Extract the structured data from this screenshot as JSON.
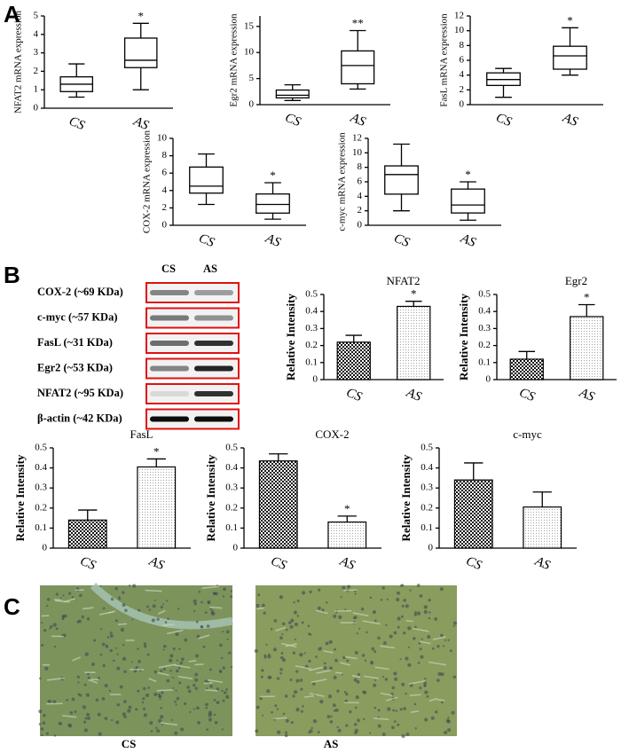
{
  "panels": [
    "A",
    "B",
    "C"
  ],
  "blot": {
    "columns": [
      "CS",
      "AS"
    ],
    "rows": [
      "COX-2 (~69 KDa)",
      "c-myc (~57 KDa)",
      "FasL (~31 KDa)",
      "Egr2 (~53 KDa)",
      "NFAT2 (~95 KDa)",
      "β-actin (~42 KDa)"
    ]
  },
  "histology": {
    "captions": [
      "CS",
      "AS"
    ]
  },
  "chart_data": [
    {
      "type": "box",
      "ylabel": "NFAT2 mRNA expression",
      "categories": [
        "CS",
        "AS"
      ],
      "min": [
        0.6,
        1.0
      ],
      "q1": [
        0.9,
        2.2
      ],
      "median": [
        1.3,
        2.6
      ],
      "q3": [
        1.7,
        3.8
      ],
      "max": [
        2.4,
        4.6
      ],
      "annotations": [
        null,
        "*"
      ],
      "ylim": [
        0,
        5
      ],
      "yticks": [
        0,
        1,
        2,
        3,
        4,
        5
      ]
    },
    {
      "type": "box",
      "ylabel": "Egr2 mRNA expression",
      "categories": [
        "CS",
        "AS"
      ],
      "min": [
        0.8,
        3.0
      ],
      "q1": [
        1.3,
        4.0
      ],
      "median": [
        1.8,
        7.5
      ],
      "q3": [
        2.8,
        10.3
      ],
      "max": [
        3.8,
        14.2
      ],
      "annotations": [
        null,
        "**"
      ],
      "ylim": [
        0,
        17
      ],
      "yticks": [
        0,
        5,
        10,
        15
      ]
    },
    {
      "type": "box",
      "ylabel": "FasL mRNA expression",
      "categories": [
        "CS",
        "AS"
      ],
      "min": [
        1.0,
        4.0
      ],
      "q1": [
        2.6,
        4.8
      ],
      "median": [
        3.4,
        6.6
      ],
      "q3": [
        4.3,
        7.9
      ],
      "max": [
        4.9,
        10.4
      ],
      "annotations": [
        null,
        "*"
      ],
      "ylim": [
        0,
        12
      ],
      "yticks": [
        0,
        2,
        4,
        6,
        8,
        10,
        12
      ]
    },
    {
      "type": "box",
      "ylabel": "COX-2 mRNA expression",
      "categories": [
        "CS",
        "AS"
      ],
      "min": [
        2.4,
        0.7
      ],
      "q1": [
        3.7,
        1.4
      ],
      "median": [
        4.5,
        2.4
      ],
      "q3": [
        6.7,
        3.6
      ],
      "max": [
        8.2,
        4.9
      ],
      "annotations": [
        null,
        "*"
      ],
      "ylim": [
        0,
        10
      ],
      "yticks": [
        0,
        2,
        4,
        6,
        8,
        10
      ]
    },
    {
      "type": "box",
      "ylabel": "c-myc mRNA expression",
      "categories": [
        "CS",
        "AS"
      ],
      "min": [
        2.0,
        0.7
      ],
      "q1": [
        4.3,
        1.7
      ],
      "median": [
        7.0,
        2.8
      ],
      "q3": [
        8.2,
        5.0
      ],
      "max": [
        11.2,
        6.0
      ],
      "annotations": [
        null,
        "*"
      ],
      "ylim": [
        0,
        12
      ],
      "yticks": [
        0,
        2,
        4,
        6,
        8,
        10,
        12
      ]
    },
    {
      "type": "bar",
      "title": "NFAT2",
      "ylabel": "Relative Intensity",
      "categories": [
        "CS",
        "AS"
      ],
      "values": [
        0.22,
        0.43
      ],
      "errors": [
        0.04,
        0.03
      ],
      "annotations": [
        null,
        "*"
      ],
      "ylim": [
        0,
        0.5
      ],
      "yticks": [
        0,
        0.1,
        0.2,
        0.3,
        0.4,
        0.5
      ]
    },
    {
      "type": "bar",
      "title": "Egr2",
      "ylabel": "Relative Intensity",
      "categories": [
        "CS",
        "AS"
      ],
      "values": [
        0.12,
        0.37
      ],
      "errors": [
        0.045,
        0.07
      ],
      "annotations": [
        null,
        "*"
      ],
      "ylim": [
        0,
        0.5
      ],
      "yticks": [
        0,
        0.1,
        0.2,
        0.3,
        0.4,
        0.5
      ]
    },
    {
      "type": "bar",
      "title": "FasL",
      "ylabel": "Relative Intensity",
      "categories": [
        "CS",
        "AS"
      ],
      "values": [
        0.14,
        0.405
      ],
      "errors": [
        0.05,
        0.04
      ],
      "annotations": [
        null,
        "*"
      ],
      "ylim": [
        0,
        0.5
      ],
      "yticks": [
        0,
        0.1,
        0.2,
        0.3,
        0.4,
        0.5
      ]
    },
    {
      "type": "bar",
      "title": "COX-2",
      "ylabel": "Relative Intensity",
      "categories": [
        "CS",
        "AS"
      ],
      "values": [
        0.435,
        0.13
      ],
      "errors": [
        0.035,
        0.03
      ],
      "annotations": [
        null,
        "*"
      ],
      "ylim": [
        0,
        0.5
      ],
      "yticks": [
        0,
        0.1,
        0.2,
        0.3,
        0.4,
        0.5
      ]
    },
    {
      "type": "bar",
      "title": "c-myc",
      "ylabel": "Relative Intensity",
      "categories": [
        "CS",
        "AS"
      ],
      "values": [
        0.34,
        0.205
      ],
      "errors": [
        0.085,
        0.075
      ],
      "ylim": [
        0,
        0.5
      ],
      "yticks": [
        0,
        0.1,
        0.2,
        0.3,
        0.4,
        0.5
      ]
    }
  ]
}
